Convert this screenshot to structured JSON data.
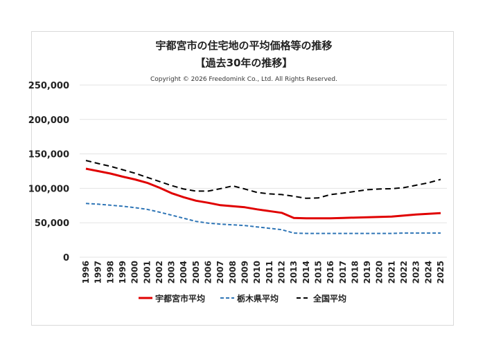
{
  "chart_data": {
    "type": "line",
    "title": "宇都宮市の住宅地の平均価格等の推移",
    "subtitle": "【過去30年の推移】",
    "copyright": "Copyright © 2026 Freedomink Co., Ltd. All Rights Reserved.",
    "xlabel": "",
    "ylabel": "",
    "ylim": [
      0,
      250000
    ],
    "yticks": [
      0,
      50000,
      100000,
      150000,
      200000,
      250000
    ],
    "ytick_labels": [
      "0",
      "50,000",
      "100,000",
      "150,000",
      "200,000",
      "250,000"
    ],
    "grid": true,
    "legend_placement": "bottom",
    "categories": [
      "1996",
      "1997",
      "1998",
      "1999",
      "2000",
      "2001",
      "2002",
      "2003",
      "2004",
      "2005",
      "2006",
      "2007",
      "2008",
      "2009",
      "2010",
      "2011",
      "2012",
      "2013",
      "2014",
      "2015",
      "2016",
      "2017",
      "2018",
      "2019",
      "2020",
      "2021",
      "2022",
      "2023",
      "2024",
      "2025"
    ],
    "series": [
      {
        "name": "宇都宮市平均",
        "color": "#e00000",
        "style": "solid",
        "values": [
          128500,
          125000,
          121500,
          117000,
          113000,
          108000,
          101000,
          93000,
          87000,
          82000,
          79000,
          75500,
          74000,
          72500,
          69500,
          67000,
          64500,
          57000,
          56500,
          56500,
          56500,
          57000,
          57500,
          58000,
          58500,
          59000,
          60500,
          62000,
          63000,
          64000
        ]
      },
      {
        "name": "栃木県平均",
        "color": "#2e75b6",
        "style": "dashed",
        "values": [
          78000,
          77000,
          75500,
          74000,
          72000,
          69500,
          65500,
          61000,
          56500,
          52000,
          49500,
          48000,
          47000,
          46000,
          44000,
          42000,
          40000,
          35000,
          34500,
          34500,
          34500,
          34500,
          34500,
          34500,
          34500,
          34500,
          35000,
          35000,
          35000,
          35000
        ]
      },
      {
        "name": "全国平均",
        "color": "#000000",
        "style": "dashed",
        "values": [
          140500,
          136000,
          132000,
          127000,
          122000,
          116000,
          110000,
          104000,
          99000,
          96000,
          96000,
          99500,
          103500,
          99000,
          94000,
          92000,
          91000,
          88500,
          85500,
          86000,
          91000,
          93000,
          95500,
          98000,
          99000,
          99500,
          101000,
          104500,
          108000,
          113000
        ]
      }
    ]
  }
}
